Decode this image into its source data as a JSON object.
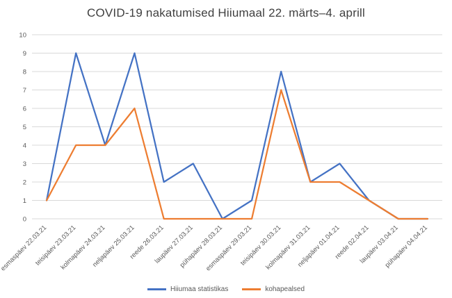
{
  "chart_data": {
    "type": "line",
    "title": "COVID-19 nakatumised Hiiumaal 22. märts–4. aprill",
    "xlabel": "",
    "ylabel": "",
    "ylim": [
      0,
      10
    ],
    "ytick_step": 1,
    "grid": true,
    "legend_position": "bottom",
    "categories": [
      "esmaspäev 22.03.21",
      "teisipäev 23.03.21",
      "kolmapäev 24.03.21",
      "neljapäev 25.03.21",
      "reede 26.03.21",
      "laupäev 27.03.21",
      "pühapäev 28.03.21",
      "esmaspäev 29.03.21",
      "teisipäev 30.03.21",
      "kolmapäev 31.03.21",
      "neljapäev 01.04.21",
      "reede 02.04.21",
      "laupäev 03.04.21",
      "pühapäev 04.04.21"
    ],
    "series": [
      {
        "name": "Hiiumaa statistikas",
        "color": "#4472C4",
        "values": [
          1,
          9,
          4,
          9,
          2,
          3,
          0,
          1,
          8,
          2,
          3,
          1,
          0,
          0
        ]
      },
      {
        "name": "kohapealsed",
        "color": "#ED7D31",
        "values": [
          1,
          4,
          4,
          6,
          0,
          0,
          0,
          0,
          7,
          2,
          2,
          1,
          0,
          0
        ]
      }
    ]
  }
}
